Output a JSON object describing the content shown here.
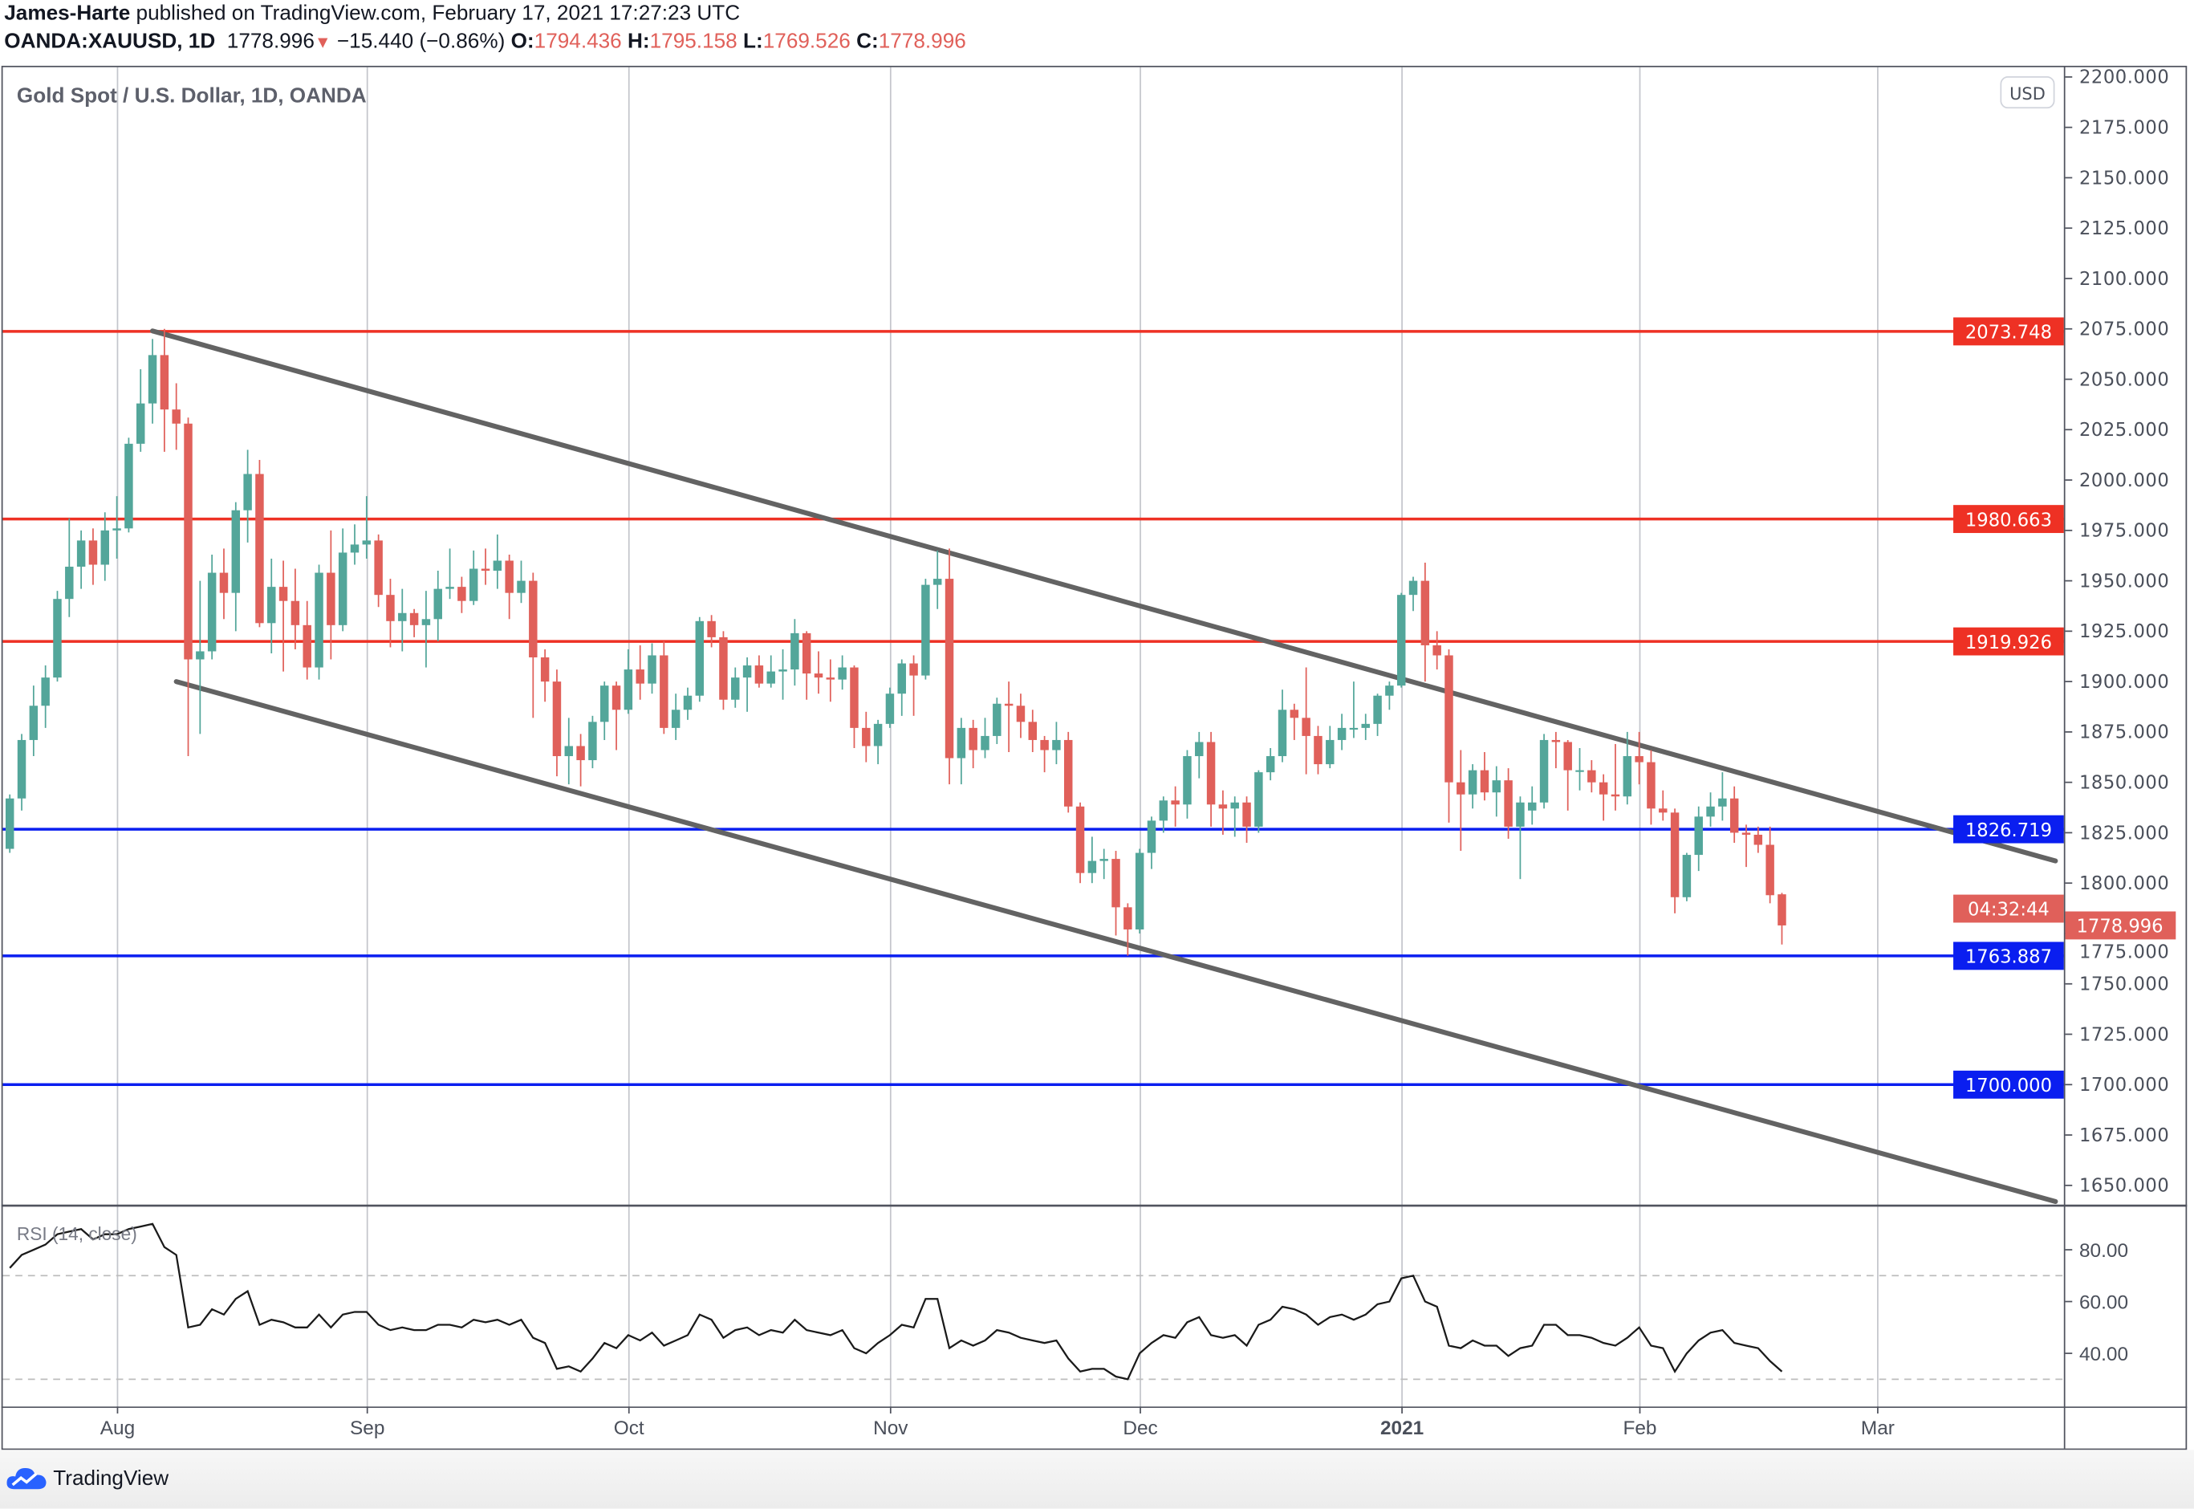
{
  "header": {
    "author": "James-Harte",
    "published": "published on TradingView.com, February 17, 2021 17:27:23 UTC",
    "symbol": "OANDA:XAUUSD, 1D",
    "last": "1778.996",
    "change": "−15.440 (−0.86%)",
    "o_label": "O:",
    "o": "1794.436",
    "h_label": "H:",
    "h": "1795.158",
    "l_label": "L:",
    "l": "1769.526",
    "c_label": "C:",
    "c": "1778.996"
  },
  "footer": {
    "brand": "TradingView",
    "icon": "tradingview-cloud-logo"
  },
  "colors": {
    "up": "#53a69a",
    "down": "#e0605a",
    "resistance": "#ee3124",
    "support": "#0a1ef0",
    "trendline": "#636363"
  },
  "chart_data": {
    "type": "candlestick",
    "title": "Gold Spot / U.S. Dollar, 1D, OANDA",
    "currency_badge": "USD",
    "ylim": [
      1637,
      2215
    ],
    "grid": "vertical only",
    "price_axis": {
      "ticks": [
        "2200.000",
        "2175.000",
        "2150.000",
        "2125.000",
        "2100.000",
        "2075.000",
        "2050.000",
        "2025.000",
        "2000.000",
        "1975.000",
        "1950.000",
        "1925.000",
        "1900.000",
        "1875.000",
        "1850.000",
        "1825.000",
        "1800.000",
        "1775.000",
        "1750.000",
        "1725.000",
        "1700.000",
        "1675.000",
        "1650.000"
      ]
    },
    "x_axis": {
      "labels": [
        {
          "text": "Aug",
          "date": "2020-08-03",
          "bold": false
        },
        {
          "text": "Sep",
          "date": "2020-09-01",
          "bold": false
        },
        {
          "text": "Oct",
          "date": "2020-10-01",
          "bold": false
        },
        {
          "text": "Nov",
          "date": "2020-11-02",
          "bold": false
        },
        {
          "text": "Dec",
          "date": "2020-12-01",
          "bold": false
        },
        {
          "text": "2021",
          "date": "2021-01-04",
          "bold": true
        },
        {
          "text": "Feb",
          "date": "2021-02-01",
          "bold": false
        },
        {
          "text": "Mar",
          "date": "2021-03-01",
          "bold": false
        }
      ]
    },
    "levels": [
      {
        "price": 2073.748,
        "label": "2073.748",
        "kind": "resistance"
      },
      {
        "price": 1980.663,
        "label": "1980.663",
        "kind": "resistance"
      },
      {
        "price": 1919.926,
        "label": "1919.926",
        "kind": "resistance"
      },
      {
        "price": 1826.719,
        "label": "1826.719",
        "kind": "support"
      },
      {
        "price": 1763.887,
        "label": "1763.887",
        "kind": "support"
      },
      {
        "price": 1700.0,
        "label": "1700.000",
        "kind": "support"
      }
    ],
    "last_price": {
      "price": 1778.996,
      "label": "1778.996",
      "countdown": "04:32:44"
    },
    "trendlines": [
      {
        "name": "upper-channel",
        "from": [
          "2020-08-06",
          2074
        ],
        "to": [
          "2021-03-22",
          1811
        ]
      },
      {
        "name": "lower-channel",
        "from": [
          "2020-08-10",
          1900
        ],
        "to": [
          "2021-03-22",
          1642
        ]
      }
    ],
    "candles_format": [
      "date",
      "open",
      "high",
      "low",
      "close"
    ],
    "candles": [
      [
        "2020-07-21",
        1817,
        1844,
        1815,
        1842
      ],
      [
        "2020-07-22",
        1842,
        1874,
        1836,
        1871
      ],
      [
        "2020-07-23",
        1871,
        1898,
        1863,
        1888
      ],
      [
        "2020-07-24",
        1888,
        1908,
        1877,
        1902
      ],
      [
        "2020-07-27",
        1902,
        1945,
        1900,
        1941
      ],
      [
        "2020-07-28",
        1941,
        1981,
        1932,
        1957
      ],
      [
        "2020-07-29",
        1957,
        1975,
        1946,
        1970
      ],
      [
        "2020-07-30",
        1970,
        1976,
        1948,
        1958
      ],
      [
        "2020-07-31",
        1958,
        1984,
        1950,
        1975
      ],
      [
        "2020-08-03",
        1975,
        1992,
        1961,
        1976
      ],
      [
        "2020-08-04",
        1976,
        2021,
        1974,
        2018
      ],
      [
        "2020-08-05",
        2018,
        2055,
        2014,
        2038
      ],
      [
        "2020-08-06",
        2038,
        2070,
        2028,
        2062
      ],
      [
        "2020-08-07",
        2062,
        2075,
        2014,
        2035
      ],
      [
        "2020-08-10",
        2035,
        2048,
        2015,
        2028
      ],
      [
        "2020-08-11",
        2028,
        2031,
        1863,
        1911
      ],
      [
        "2020-08-12",
        1911,
        1950,
        1874,
        1915
      ],
      [
        "2020-08-13",
        1915,
        1963,
        1911,
        1954
      ],
      [
        "2020-08-14",
        1954,
        1966,
        1931,
        1944
      ],
      [
        "2020-08-17",
        1944,
        1989,
        1925,
        1985
      ],
      [
        "2020-08-18",
        1985,
        2015,
        1969,
        2003
      ],
      [
        "2020-08-19",
        2003,
        2010,
        1927,
        1929
      ],
      [
        "2020-08-20",
        1929,
        1961,
        1914,
        1947
      ],
      [
        "2020-08-21",
        1947,
        1960,
        1905,
        1940
      ],
      [
        "2020-08-24",
        1940,
        1956,
        1916,
        1928
      ],
      [
        "2020-08-25",
        1928,
        1940,
        1901,
        1907
      ],
      [
        "2020-08-26",
        1907,
        1958,
        1901,
        1954
      ],
      [
        "2020-08-27",
        1954,
        1975,
        1911,
        1928
      ],
      [
        "2020-08-28",
        1928,
        1976,
        1925,
        1964
      ],
      [
        "2020-08-31",
        1964,
        1978,
        1958,
        1968
      ],
      [
        "2020-09-01",
        1968,
        1992,
        1961,
        1970
      ],
      [
        "2020-09-02",
        1970,
        1973,
        1937,
        1943
      ],
      [
        "2020-09-03",
        1943,
        1951,
        1917,
        1930
      ],
      [
        "2020-09-04",
        1930,
        1946,
        1915,
        1934
      ],
      [
        "2020-09-07",
        1934,
        1936,
        1922,
        1928
      ],
      [
        "2020-09-08",
        1928,
        1945,
        1907,
        1931
      ],
      [
        "2020-09-09",
        1931,
        1955,
        1920,
        1946
      ],
      [
        "2020-09-10",
        1946,
        1966,
        1941,
        1947
      ],
      [
        "2020-09-11",
        1947,
        1952,
        1934,
        1940
      ],
      [
        "2020-09-14",
        1940,
        1965,
        1938,
        1956
      ],
      [
        "2020-09-15",
        1956,
        1966,
        1948,
        1955
      ],
      [
        "2020-09-16",
        1955,
        1973,
        1946,
        1960
      ],
      [
        "2020-09-17",
        1960,
        1963,
        1931,
        1944
      ],
      [
        "2020-09-18",
        1944,
        1960,
        1939,
        1950
      ],
      [
        "2020-09-21",
        1950,
        1954,
        1882,
        1912
      ],
      [
        "2020-09-22",
        1912,
        1916,
        1890,
        1900
      ],
      [
        "2020-09-23",
        1900,
        1906,
        1853,
        1863
      ],
      [
        "2020-09-24",
        1863,
        1882,
        1849,
        1868
      ],
      [
        "2020-09-25",
        1868,
        1874,
        1848,
        1861
      ],
      [
        "2020-09-28",
        1861,
        1883,
        1857,
        1880
      ],
      [
        "2020-09-29",
        1880,
        1900,
        1871,
        1898
      ],
      [
        "2020-09-30",
        1898,
        1900,
        1866,
        1886
      ],
      [
        "2020-10-01",
        1886,
        1916,
        1884,
        1906
      ],
      [
        "2020-10-02",
        1906,
        1918,
        1891,
        1899
      ],
      [
        "2020-10-05",
        1899,
        1919,
        1894,
        1913
      ],
      [
        "2020-10-06",
        1913,
        1920,
        1874,
        1877
      ],
      [
        "2020-10-07",
        1877,
        1894,
        1871,
        1886
      ],
      [
        "2020-10-08",
        1886,
        1897,
        1881,
        1893
      ],
      [
        "2020-10-09",
        1893,
        1932,
        1890,
        1930
      ],
      [
        "2020-10-12",
        1930,
        1933,
        1917,
        1922
      ],
      [
        "2020-10-13",
        1922,
        1925,
        1886,
        1891
      ],
      [
        "2020-10-14",
        1891,
        1907,
        1887,
        1902
      ],
      [
        "2020-10-15",
        1902,
        1912,
        1885,
        1908
      ],
      [
        "2020-10-16",
        1908,
        1913,
        1897,
        1899
      ],
      [
        "2020-10-19",
        1899,
        1913,
        1897,
        1905
      ],
      [
        "2020-10-20",
        1905,
        1916,
        1891,
        1906
      ],
      [
        "2020-10-21",
        1906,
        1931,
        1898,
        1924
      ],
      [
        "2020-10-22",
        1924,
        1925,
        1891,
        1904
      ],
      [
        "2020-10-23",
        1904,
        1915,
        1894,
        1902
      ],
      [
        "2020-10-26",
        1902,
        1911,
        1890,
        1901
      ],
      [
        "2020-10-27",
        1901,
        1913,
        1896,
        1907
      ],
      [
        "2020-10-28",
        1907,
        1908,
        1867,
        1877
      ],
      [
        "2020-10-29",
        1877,
        1885,
        1860,
        1868
      ],
      [
        "2020-10-30",
        1868,
        1881,
        1859,
        1879
      ],
      [
        "2020-11-02",
        1879,
        1897,
        1877,
        1894
      ],
      [
        "2020-11-03",
        1894,
        1911,
        1883,
        1909
      ],
      [
        "2020-11-04",
        1909,
        1913,
        1883,
        1903
      ],
      [
        "2020-11-05",
        1903,
        1951,
        1901,
        1948
      ],
      [
        "2020-11-06",
        1948,
        1965,
        1936,
        1951
      ],
      [
        "2020-11-09",
        1951,
        1966,
        1849,
        1862
      ],
      [
        "2020-11-10",
        1862,
        1882,
        1849,
        1877
      ],
      [
        "2020-11-11",
        1877,
        1881,
        1857,
        1866
      ],
      [
        "2020-11-12",
        1866,
        1882,
        1862,
        1873
      ],
      [
        "2020-11-13",
        1873,
        1892,
        1869,
        1889
      ],
      [
        "2020-11-16",
        1889,
        1900,
        1865,
        1888
      ],
      [
        "2020-11-17",
        1888,
        1894,
        1872,
        1880
      ],
      [
        "2020-11-18",
        1880,
        1886,
        1865,
        1871
      ],
      [
        "2020-11-19",
        1871,
        1873,
        1855,
        1866
      ],
      [
        "2020-11-20",
        1866,
        1880,
        1859,
        1871
      ],
      [
        "2020-11-23",
        1871,
        1875,
        1835,
        1838
      ],
      [
        "2020-11-24",
        1838,
        1840,
        1800,
        1805
      ],
      [
        "2020-11-25",
        1805,
        1823,
        1800,
        1811
      ],
      [
        "2020-11-26",
        1811,
        1817,
        1802,
        1812
      ],
      [
        "2020-11-27",
        1812,
        1816,
        1774,
        1788
      ],
      [
        "2020-11-30",
        1788,
        1790,
        1764,
        1777
      ],
      [
        "2020-12-01",
        1777,
        1817,
        1775,
        1815
      ],
      [
        "2020-12-02",
        1815,
        1833,
        1807,
        1831
      ],
      [
        "2020-12-03",
        1831,
        1843,
        1825,
        1841
      ],
      [
        "2020-12-04",
        1841,
        1848,
        1828,
        1839
      ],
      [
        "2020-12-07",
        1839,
        1866,
        1832,
        1863
      ],
      [
        "2020-12-08",
        1863,
        1875,
        1852,
        1870
      ],
      [
        "2020-12-09",
        1870,
        1875,
        1828,
        1839
      ],
      [
        "2020-12-10",
        1839,
        1846,
        1824,
        1837
      ],
      [
        "2020-12-11",
        1837,
        1843,
        1823,
        1840
      ],
      [
        "2020-12-14",
        1840,
        1843,
        1820,
        1828
      ],
      [
        "2020-12-15",
        1828,
        1856,
        1825,
        1855
      ],
      [
        "2020-12-16",
        1855,
        1867,
        1851,
        1863
      ],
      [
        "2020-12-17",
        1863,
        1896,
        1860,
        1886
      ],
      [
        "2020-12-18",
        1886,
        1889,
        1871,
        1882
      ],
      [
        "2020-12-21",
        1882,
        1907,
        1854,
        1873
      ],
      [
        "2020-12-22",
        1873,
        1878,
        1854,
        1859
      ],
      [
        "2020-12-23",
        1859,
        1878,
        1857,
        1871
      ],
      [
        "2020-12-24",
        1871,
        1884,
        1866,
        1877
      ],
      [
        "2020-12-28",
        1877,
        1900,
        1872,
        1877
      ],
      [
        "2020-12-29",
        1877,
        1884,
        1871,
        1879
      ],
      [
        "2020-12-30",
        1879,
        1894,
        1873,
        1893
      ],
      [
        "2020-12-31",
        1893,
        1900,
        1886,
        1898
      ],
      [
        "2021-01-04",
        1898,
        1944,
        1897,
        1943
      ],
      [
        "2021-01-05",
        1943,
        1952,
        1935,
        1950
      ],
      [
        "2021-01-06",
        1950,
        1959,
        1900,
        1918
      ],
      [
        "2021-01-07",
        1918,
        1925,
        1906,
        1913
      ],
      [
        "2021-01-08",
        1913,
        1916,
        1830,
        1850
      ],
      [
        "2021-01-11",
        1850,
        1866,
        1816,
        1844
      ],
      [
        "2021-01-12",
        1844,
        1859,
        1837,
        1856
      ],
      [
        "2021-01-13",
        1856,
        1865,
        1841,
        1845
      ],
      [
        "2021-01-14",
        1845,
        1858,
        1833,
        1851
      ],
      [
        "2021-01-15",
        1851,
        1857,
        1822,
        1828
      ],
      [
        "2021-01-18",
        1828,
        1843,
        1802,
        1840
      ],
      [
        "2021-01-19",
        1836,
        1848,
        1829,
        1840
      ],
      [
        "2021-01-20",
        1840,
        1874,
        1837,
        1871
      ],
      [
        "2021-01-21",
        1871,
        1875,
        1857,
        1870
      ],
      [
        "2021-01-22",
        1870,
        1871,
        1836,
        1856
      ],
      [
        "2021-01-25",
        1856,
        1867,
        1846,
        1856
      ],
      [
        "2021-01-26",
        1856,
        1861,
        1845,
        1850
      ],
      [
        "2021-01-27",
        1850,
        1854,
        1831,
        1844
      ],
      [
        "2021-01-28",
        1844,
        1869,
        1836,
        1843
      ],
      [
        "2021-01-29",
        1843,
        1875,
        1839,
        1863
      ],
      [
        "2021-02-01",
        1863,
        1875,
        1849,
        1860
      ],
      [
        "2021-02-02",
        1860,
        1866,
        1829,
        1837
      ],
      [
        "2021-02-03",
        1837,
        1846,
        1831,
        1835
      ],
      [
        "2021-02-04",
        1835,
        1837,
        1785,
        1793
      ],
      [
        "2021-02-05",
        1793,
        1815,
        1791,
        1814
      ],
      [
        "2021-02-08",
        1814,
        1838,
        1806,
        1833
      ],
      [
        "2021-02-09",
        1833,
        1845,
        1828,
        1838
      ],
      [
        "2021-02-10",
        1838,
        1855,
        1831,
        1842
      ],
      [
        "2021-02-11",
        1842,
        1848,
        1820,
        1825
      ],
      [
        "2021-02-12",
        1825,
        1829,
        1808,
        1824
      ],
      [
        "2021-02-15",
        1824,
        1828,
        1815,
        1819
      ],
      [
        "2021-02-16",
        1819,
        1828,
        1790,
        1794
      ],
      [
        "2021-02-17",
        1794.436,
        1795.158,
        1769.526,
        1778.996
      ]
    ],
    "rsi": {
      "label": "RSI (14, close)",
      "ylim": [
        20,
        97
      ],
      "bands": [
        70,
        30
      ],
      "ticks": [
        "80.00",
        "60.00",
        "40.00"
      ],
      "values": [
        73,
        78,
        80,
        82,
        86,
        87,
        88,
        84,
        86,
        86,
        88,
        89,
        90,
        81,
        78,
        50,
        51,
        57,
        55,
        61,
        64,
        51,
        53,
        52,
        50,
        50,
        55,
        50,
        55,
        56,
        56,
        51,
        49,
        50,
        49,
        49,
        51,
        51,
        50,
        53,
        52,
        53,
        51,
        53,
        46,
        44,
        34,
        35,
        33,
        38,
        44,
        42,
        47,
        45,
        48,
        43,
        45,
        47,
        55,
        53,
        46,
        49,
        50,
        47,
        49,
        48,
        53,
        49,
        48,
        47,
        49,
        42,
        40,
        44,
        47,
        51,
        50,
        61,
        61,
        42,
        45,
        43,
        45,
        49,
        48,
        46,
        45,
        44,
        45,
        38,
        33,
        34,
        34,
        31,
        30,
        40,
        44,
        47,
        46,
        52,
        54,
        47,
        46,
        47,
        43,
        51,
        53,
        58,
        57,
        55,
        51,
        54,
        55,
        53,
        55,
        59,
        60,
        69,
        70,
        60,
        58,
        43,
        42,
        45,
        43,
        43,
        39,
        42,
        43,
        51,
        51,
        47,
        47,
        46,
        44,
        43,
        46,
        50,
        43,
        42,
        33,
        40,
        45,
        48,
        49,
        44,
        43,
        42,
        37,
        33
      ]
    }
  }
}
